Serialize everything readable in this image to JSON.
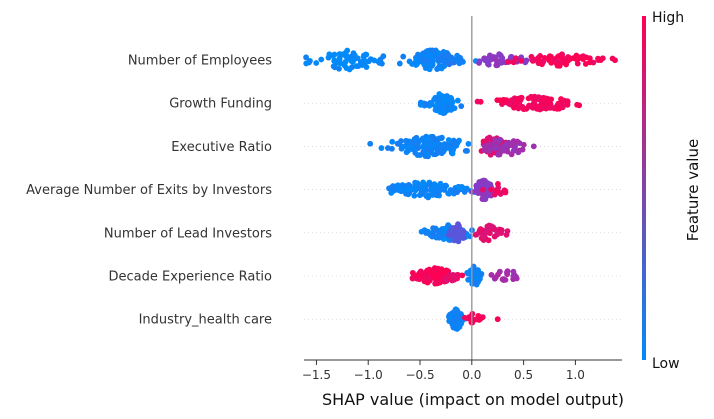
{
  "chart_data": {
    "type": "scatter",
    "subtype": "shap-beeswarm",
    "xlabel": "SHAP value (impact on model output)",
    "xlim": [
      -1.62,
      1.45
    ],
    "x_ticks": [
      -1.5,
      -1.0,
      -0.5,
      0.0,
      0.5,
      1.0
    ],
    "x_tick_labels": [
      "−1.5",
      "−1.0",
      "−0.5",
      "0.0",
      "0.5",
      "1.0"
    ],
    "zero_line": 0.0,
    "colorbar": {
      "title": "Feature value",
      "high_label": "High",
      "low_label": "Low",
      "low_color": "#008bfb",
      "high_color": "#ff0052"
    },
    "features": [
      {
        "name": "Number of Employees",
        "clusters": [
          {
            "center": -1.2,
            "spread": 0.17,
            "n": 70,
            "width": 1.0,
            "value": 0.02
          },
          {
            "center": -0.38,
            "spread": 0.13,
            "n": 80,
            "width": 1.0,
            "value": 0.05
          },
          {
            "center": -0.2,
            "spread": 0.08,
            "n": 20,
            "width": 0.5,
            "value": 0.1
          },
          {
            "center": 0.28,
            "spread": 0.14,
            "n": 40,
            "width": 0.6,
            "value": 0.55
          },
          {
            "center": 0.9,
            "spread": 0.22,
            "n": 70,
            "width": 0.6,
            "value": 0.97
          }
        ]
      },
      {
        "name": "Growth Funding",
        "clusters": [
          {
            "center": -0.28,
            "spread": 0.07,
            "n": 85,
            "width": 1.0,
            "value": 0.04
          },
          {
            "center": -0.5,
            "spread": 0.03,
            "n": 4,
            "width": 0.2,
            "value": 0.05
          },
          {
            "center": 0.65,
            "spread": 0.22,
            "n": 95,
            "width": 0.7,
            "value": 0.96
          }
        ]
      },
      {
        "name": "Executive Ratio",
        "clusters": [
          {
            "center": -0.4,
            "spread": 0.2,
            "n": 140,
            "width": 1.0,
            "value": 0.05
          },
          {
            "center": 0.2,
            "spread": 0.06,
            "n": 50,
            "width": 1.0,
            "value": 0.88
          },
          {
            "center": 0.32,
            "spread": 0.12,
            "n": 45,
            "width": 0.9,
            "value": 0.62
          }
        ]
      },
      {
        "name": "Average Number of Exits by Investors",
        "clusters": [
          {
            "center": -0.45,
            "spread": 0.17,
            "n": 95,
            "width": 0.8,
            "value": 0.05
          },
          {
            "center": -0.12,
            "spread": 0.06,
            "n": 15,
            "width": 0.3,
            "value": 0.06
          },
          {
            "center": 0.12,
            "spread": 0.05,
            "n": 55,
            "width": 1.0,
            "value": 0.55
          },
          {
            "center": 0.23,
            "spread": 0.06,
            "n": 12,
            "width": 0.6,
            "value": 0.92
          }
        ]
      },
      {
        "name": "Number of Lead Investors",
        "clusters": [
          {
            "center": -0.22,
            "spread": 0.12,
            "n": 70,
            "width": 0.8,
            "value": 0.05
          },
          {
            "center": -0.14,
            "spread": 0.04,
            "n": 30,
            "width": 1.0,
            "value": 0.35
          },
          {
            "center": 0.14,
            "spread": 0.07,
            "n": 40,
            "width": 0.8,
            "value": 0.88
          }
        ]
      },
      {
        "name": "Decade Experience Ratio",
        "clusters": [
          {
            "center": -0.35,
            "spread": 0.1,
            "n": 100,
            "width": 0.8,
            "value": 0.96
          },
          {
            "center": -0.2,
            "spread": 0.04,
            "n": 20,
            "width": 0.5,
            "value": 0.9
          },
          {
            "center": 0.03,
            "spread": 0.03,
            "n": 40,
            "width": 1.0,
            "value": 0.05
          },
          {
            "center": 0.33,
            "spread": 0.07,
            "n": 18,
            "width": 0.6,
            "value": 0.65
          }
        ]
      },
      {
        "name": "Industry_health care",
        "clusters": [
          {
            "center": -0.15,
            "spread": 0.035,
            "n": 110,
            "width": 1.0,
            "value": 0.05
          },
          {
            "center": 0.03,
            "spread": 0.05,
            "n": 20,
            "width": 0.6,
            "value": 0.96
          },
          {
            "center": 0.25,
            "spread": 0.0,
            "n": 1,
            "width": 0.0,
            "value": 0.97
          }
        ]
      }
    ]
  }
}
